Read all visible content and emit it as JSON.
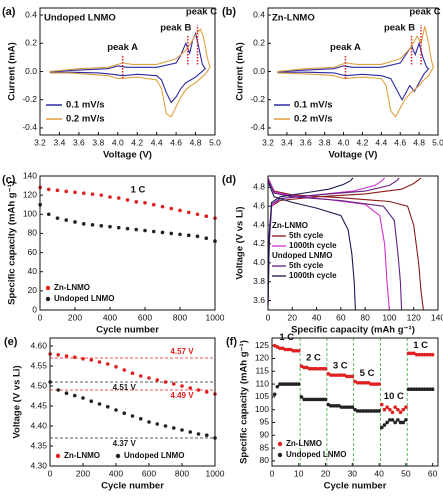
{
  "chart_data": [
    {
      "type": "line",
      "label": "(a)",
      "legend_title": "Undoped LNMO",
      "xlabel": "Voltage (V)",
      "ylabel": "Current (mA)",
      "xlim": [
        3.2,
        5.0
      ],
      "xticks": [
        3.2,
        3.4,
        3.6,
        3.8,
        {
          "value": 4,
          "label": "4.0"
        },
        4.2,
        4.4,
        4.6,
        4.8,
        {
          "value": 5,
          "label": "5.0"
        }
      ],
      "ylim": [
        -0.45,
        0.45
      ],
      "yticks": [
        -0.4,
        -0.2,
        {
          "value": 0,
          "label": "0.0"
        },
        0.2,
        0.4
      ],
      "legend": "lower left",
      "peaks": [
        {
          "label": "peak A",
          "x": 4.05
        },
        {
          "label": "peak B",
          "x": 4.72
        },
        {
          "label": "peak C",
          "x": 4.82
        }
      ],
      "series": [
        {
          "name": "0.1 mV/s",
          "color": "#2a2aa0",
          "x": [
            3.3,
            3.6,
            3.9,
            4.0,
            4.1,
            4.4,
            4.6,
            4.65,
            4.7,
            4.74,
            4.77,
            4.8,
            4.83,
            4.87,
            4.9,
            4.85,
            4.8,
            4.75,
            4.7,
            4.65,
            4.6,
            4.55,
            4.5,
            4.45,
            4.4,
            4.2,
            4.05,
            3.95,
            3.8,
            3.5,
            3.3
          ],
          "values": [
            0.0,
            0.01,
            0.02,
            0.04,
            0.03,
            0.03,
            0.06,
            0.12,
            0.2,
            0.13,
            0.22,
            0.27,
            0.18,
            0.05,
            0.02,
            -0.01,
            -0.04,
            -0.06,
            -0.08,
            -0.12,
            -0.18,
            -0.22,
            -0.15,
            -0.06,
            -0.03,
            -0.02,
            -0.03,
            -0.02,
            -0.01,
            -0.005,
            -0.005
          ]
        },
        {
          "name": "0.2 mV/s",
          "color": "#e0a040",
          "x": [
            3.3,
            3.6,
            3.9,
            4.05,
            4.15,
            4.4,
            4.6,
            4.7,
            4.75,
            4.8,
            4.85,
            4.88,
            4.92,
            4.95,
            4.9,
            4.85,
            4.8,
            4.75,
            4.7,
            4.65,
            4.6,
            4.55,
            4.5,
            4.45,
            4.4,
            4.2,
            4.0,
            3.9,
            3.7,
            3.5,
            3.3
          ],
          "values": [
            0.0,
            0.02,
            0.03,
            0.06,
            0.05,
            0.05,
            0.09,
            0.15,
            0.2,
            0.26,
            0.3,
            0.25,
            0.1,
            0.03,
            -0.02,
            -0.05,
            -0.08,
            -0.1,
            -0.13,
            -0.18,
            -0.25,
            -0.32,
            -0.3,
            -0.12,
            -0.06,
            -0.04,
            -0.05,
            -0.03,
            -0.02,
            -0.01,
            -0.01
          ]
        }
      ]
    },
    {
      "type": "line",
      "label": "(b)",
      "legend_title": "Zn-LNMO",
      "xlabel": "Voltage (V)",
      "ylabel": "Current (mA)",
      "xlim": [
        3.2,
        5.0
      ],
      "xticks": [
        3.2,
        3.4,
        3.6,
        3.8,
        {
          "value": 4,
          "label": "4.0"
        },
        4.2,
        4.4,
        4.6,
        4.8,
        {
          "value": 5,
          "label": "5.0"
        }
      ],
      "ylim": [
        -0.45,
        0.45
      ],
      "yticks": [
        -0.4,
        -0.2,
        {
          "value": 0,
          "label": "0.0"
        },
        0.2,
        0.4
      ],
      "legend": "lower left",
      "peaks": [
        {
          "label": "peak A",
          "x": 4.02
        },
        {
          "label": "peak B",
          "x": 4.72
        },
        {
          "label": "peak C",
          "x": 4.82
        }
      ],
      "series": [
        {
          "name": "0.1 mV/s",
          "color": "#2a2aa0",
          "x": [
            3.3,
            3.6,
            3.9,
            4.0,
            4.1,
            4.4,
            4.6,
            4.66,
            4.72,
            4.76,
            4.8,
            4.84,
            4.88,
            4.9,
            4.85,
            4.8,
            4.75,
            4.7,
            4.66,
            4.62,
            4.58,
            4.5,
            4.4,
            4.2,
            4.02,
            3.9,
            3.6,
            3.3
          ],
          "values": [
            0.0,
            0.01,
            0.02,
            0.04,
            0.03,
            0.03,
            0.06,
            0.12,
            0.18,
            0.12,
            0.2,
            0.1,
            0.03,
            0.02,
            -0.02,
            -0.08,
            -0.14,
            -0.1,
            -0.15,
            -0.2,
            -0.15,
            -0.05,
            -0.03,
            -0.02,
            -0.03,
            -0.01,
            -0.005,
            -0.005
          ]
        },
        {
          "name": "0.2 mV/s",
          "color": "#e0a040",
          "x": [
            3.3,
            3.6,
            3.9,
            4.02,
            4.15,
            4.4,
            4.6,
            4.7,
            4.78,
            4.82,
            4.86,
            4.9,
            4.93,
            4.95,
            4.9,
            4.85,
            4.8,
            4.75,
            4.7,
            4.65,
            4.6,
            4.55,
            4.5,
            4.45,
            4.4,
            4.2,
            4.0,
            3.9,
            3.7,
            3.3
          ],
          "values": [
            0.0,
            0.02,
            0.03,
            0.06,
            0.05,
            0.05,
            0.09,
            0.16,
            0.25,
            0.2,
            0.32,
            0.2,
            0.08,
            0.03,
            -0.03,
            -0.06,
            -0.1,
            -0.13,
            -0.16,
            -0.2,
            -0.26,
            -0.32,
            -0.28,
            -0.1,
            -0.05,
            -0.04,
            -0.05,
            -0.03,
            -0.02,
            -0.01
          ]
        }
      ]
    },
    {
      "type": "scatter",
      "label": "(c)",
      "annotation": "1 C",
      "xlabel": "Cycle number",
      "ylabel": "Specific capacity (mAh g⁻¹)",
      "xlim": [
        0,
        1000
      ],
      "xticks": [
        0,
        200,
        400,
        600,
        800,
        1000
      ],
      "ylim": [
        0,
        140
      ],
      "yticks": [
        0,
        20,
        40,
        60,
        80,
        100,
        120,
        140
      ],
      "legend": "lower left",
      "x": [
        1,
        50,
        100,
        150,
        200,
        250,
        300,
        350,
        400,
        450,
        500,
        550,
        600,
        650,
        700,
        750,
        800,
        850,
        900,
        950,
        1000
      ],
      "series": [
        {
          "name": "Zn-LNMO",
          "color": "#e02020",
          "values": [
            128,
            126,
            125,
            124,
            123,
            122,
            121,
            120,
            118,
            117,
            115,
            113,
            112,
            110,
            108,
            106,
            104,
            102,
            100,
            98,
            96
          ]
        },
        {
          "name": "Undoped LNMO",
          "color": "#222222",
          "values": [
            110,
            100,
            96,
            94,
            92,
            90,
            89,
            88,
            87,
            86,
            85,
            84,
            83,
            82,
            81,
            80,
            79,
            78,
            77,
            75,
            72
          ]
        }
      ]
    },
    {
      "type": "line",
      "label": "(d)",
      "xlabel": "Specific capacity (mAh g⁻¹)",
      "ylabel": "Voltage (V vs Li)",
      "xlim": [
        0,
        140
      ],
      "xticks": [
        0,
        20,
        40,
        60,
        80,
        100,
        120,
        140
      ],
      "ylim": [
        3.5,
        4.92
      ],
      "yticks": [
        3.6,
        3.8,
        {
          "value": 4,
          "label": "4.0"
        },
        4.2,
        4.4,
        4.6,
        4.8
      ],
      "legend": "lower left",
      "legend_groups": [
        "Zn-LNMO",
        "Undoped LNMO"
      ],
      "series": [
        {
          "name": "5th cycle",
          "color": "#8b1a1a",
          "x": [
            0,
            1,
            3,
            10,
            40,
            80,
            110,
            120,
            124,
            126,
            null,
            0,
            5,
            20,
            60,
            100,
            115,
            120,
            124,
            126,
            128
          ],
          "values": [
            3.55,
            4.2,
            4.6,
            4.66,
            4.7,
            4.73,
            4.78,
            4.84,
            4.88,
            4.9,
            null,
            4.9,
            4.76,
            4.72,
            4.69,
            4.65,
            4.6,
            4.4,
            4.0,
            3.7,
            3.5
          ]
        },
        {
          "name": "1000th cycle",
          "color": "#d030d0",
          "x": [
            0,
            1,
            3,
            10,
            40,
            70,
            88,
            94,
            96,
            null,
            0,
            5,
            20,
            50,
            80,
            92,
            96,
            98,
            100
          ],
          "values": [
            3.55,
            4.2,
            4.6,
            4.68,
            4.72,
            4.76,
            4.82,
            4.87,
            4.9,
            null,
            4.9,
            4.75,
            4.71,
            4.67,
            4.62,
            4.5,
            4.2,
            3.8,
            3.5
          ]
        },
        {
          "name": "5th cycle",
          "color": "#602080",
          "x": [
            0,
            1,
            3,
            10,
            40,
            80,
            100,
            106,
            108,
            null,
            0,
            5,
            20,
            60,
            95,
            104,
            107,
            109,
            110
          ],
          "values": [
            3.55,
            4.25,
            4.62,
            4.68,
            4.72,
            4.76,
            4.82,
            4.87,
            4.9,
            null,
            4.88,
            4.74,
            4.7,
            4.66,
            4.6,
            4.45,
            4.1,
            3.8,
            3.5
          ]
        },
        {
          "name": "1000th cycle",
          "color": "#1a1a50",
          "x": [
            0,
            1,
            3,
            10,
            30,
            50,
            62,
            68,
            70,
            null,
            0,
            5,
            20,
            40,
            60,
            66,
            69,
            71,
            72
          ],
          "values": [
            3.55,
            4.3,
            4.64,
            4.7,
            4.74,
            4.78,
            4.83,
            4.87,
            4.9,
            null,
            4.86,
            4.7,
            4.64,
            4.58,
            4.5,
            4.35,
            4.1,
            3.8,
            3.5
          ]
        }
      ]
    },
    {
      "type": "scatter",
      "label": "(e)",
      "xlabel": "Cycle number",
      "ylabel": "Voltage (V vs Li)",
      "xlim": [
        0,
        1000
      ],
      "xticks": [
        0,
        200,
        400,
        600,
        800,
        1000
      ],
      "ylim": [
        4.3,
        4.62
      ],
      "yticks": [
        {
          "value": 4.3,
          "label": "4.30"
        },
        4.35,
        {
          "value": 4.4,
          "label": "4.40"
        },
        4.45,
        {
          "value": 4.5,
          "label": "4.50"
        },
        4.55,
        {
          "value": 4.6,
          "label": "4.60"
        }
      ],
      "legend": "lower left",
      "ref_lines": [
        {
          "label": "4.57 V",
          "value": 4.57,
          "color": "#e02020"
        },
        {
          "label": "4.49 V",
          "value": 4.49,
          "color": "#e02020"
        },
        {
          "label": "4.51 V",
          "value": 4.51,
          "color": "#222222"
        },
        {
          "label": "4.37 V",
          "value": 4.37,
          "color": "#222222"
        }
      ],
      "x": [
        1,
        50,
        100,
        150,
        200,
        250,
        300,
        350,
        400,
        450,
        500,
        550,
        600,
        650,
        700,
        750,
        800,
        850,
        900,
        950,
        1000
      ],
      "series": [
        {
          "name": "Zn-LNMO",
          "color": "#e02020",
          "values": [
            4.58,
            4.578,
            4.575,
            4.572,
            4.568,
            4.565,
            4.56,
            4.555,
            4.548,
            4.54,
            4.532,
            4.525,
            4.52,
            4.515,
            4.51,
            4.505,
            4.5,
            4.495,
            4.49,
            4.485,
            4.48
          ]
        },
        {
          "name": "Undoped LNMO",
          "color": "#222222",
          "values": [
            4.51,
            4.49,
            4.482,
            4.476,
            4.47,
            4.462,
            4.455,
            4.448,
            4.44,
            4.432,
            4.425,
            4.418,
            4.41,
            4.405,
            4.4,
            4.395,
            4.39,
            4.385,
            4.38,
            4.377,
            4.37
          ]
        }
      ]
    },
    {
      "type": "scatter",
      "label": "(f)",
      "xlabel": "Cycle number",
      "ylabel": "Specific capacity (mAh g⁻¹)",
      "xlim": [
        0,
        62
      ],
      "xticks": [
        0,
        10,
        20,
        30,
        40,
        50,
        60
      ],
      "ylim": [
        78,
        128
      ],
      "yticks": [
        80,
        85,
        90,
        95,
        100,
        105,
        110,
        115,
        120,
        125
      ],
      "legend": "lower left",
      "rate_labels": [
        "1 C",
        "2 C",
        "3 C",
        "5 C",
        "10 C",
        "1 C"
      ],
      "x": [
        1,
        2,
        3,
        4,
        5,
        6,
        7,
        8,
        9,
        10,
        11,
        12,
        13,
        14,
        15,
        16,
        17,
        18,
        19,
        20,
        21,
        22,
        23,
        24,
        25,
        26,
        27,
        28,
        29,
        30,
        31,
        32,
        33,
        34,
        35,
        36,
        37,
        38,
        39,
        40,
        41,
        42,
        43,
        44,
        45,
        46,
        47,
        48,
        49,
        50,
        51,
        52,
        53,
        54,
        55,
        56,
        57,
        58,
        59,
        60
      ],
      "series": [
        {
          "name": "Zn-LNMO",
          "color": "#e02020",
          "values": [
            125,
            124.5,
            124,
            124,
            123.5,
            123.5,
            123.5,
            123,
            123,
            123,
            117,
            116.5,
            116.5,
            116,
            116,
            116,
            116,
            116,
            116,
            116,
            114,
            113.5,
            113.5,
            113.5,
            113.5,
            113.5,
            113.5,
            113,
            113,
            113,
            111,
            110.5,
            110.5,
            110.5,
            110.5,
            110.5,
            110,
            110,
            110,
            110,
            102,
            100,
            101,
            100,
            99,
            101,
            100,
            99,
            100,
            101,
            122,
            122,
            122,
            121.5,
            121.5,
            121.5,
            121.5,
            121.5,
            121.5,
            121.5
          ]
        },
        {
          "name": "Undoped LNMO",
          "color": "#222222",
          "values": [
            106,
            109,
            110,
            110,
            110,
            110,
            110,
            110,
            110,
            110,
            105,
            104,
            104,
            104,
            104,
            104,
            104,
            104,
            104,
            104,
            102,
            101.5,
            101.5,
            101.5,
            101.5,
            101,
            101,
            101,
            101,
            101,
            100,
            99.5,
            99.5,
            99.5,
            99.5,
            99.5,
            99.5,
            99.5,
            99.5,
            99.5,
            93,
            94,
            95,
            96,
            96,
            95,
            96,
            95,
            95,
            96,
            108,
            108,
            108,
            108,
            108,
            108,
            108,
            108,
            108,
            108
          ]
        }
      ]
    }
  ]
}
